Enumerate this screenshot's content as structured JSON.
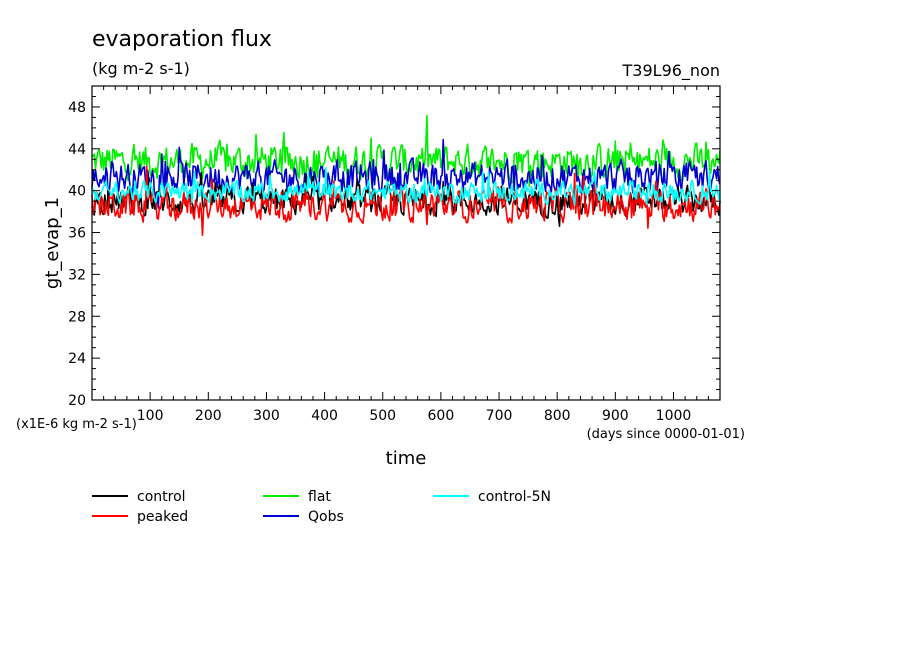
{
  "chart_data": {
    "type": "line",
    "title": "evaporation flux",
    "units": "(kg m-2 s-1)",
    "run_label": "T39L96_non",
    "ylabel": "gt_evap_1",
    "xlabel": "time",
    "y_scale_note": "(x1E-6 kg m-2 s-1)",
    "x_unit_note": "(days since 0000-01-01)",
    "xlim": [
      0,
      1080
    ],
    "ylim": [
      20,
      50
    ],
    "x_ticks": [
      100,
      200,
      300,
      400,
      500,
      600,
      700,
      800,
      900,
      1000
    ],
    "y_ticks": [
      20,
      24,
      28,
      32,
      36,
      40,
      44,
      48
    ],
    "grid": false,
    "legend_position": "bottom",
    "series": [
      {
        "name": "control",
        "color": "#000000",
        "mean": 39.0,
        "amplitude": 1.8
      },
      {
        "name": "peaked",
        "color": "#ff0000",
        "mean": 38.6,
        "amplitude": 2.0
      },
      {
        "name": "flat",
        "color": "#00ee00",
        "mean": 42.8,
        "amplitude": 2.2
      },
      {
        "name": "Qobs",
        "color": "#0000cc",
        "mean": 41.3,
        "amplitude": 2.0
      },
      {
        "name": "control-5N",
        "color": "#00ffff",
        "mean": 39.9,
        "amplitude": 1.3
      }
    ]
  }
}
